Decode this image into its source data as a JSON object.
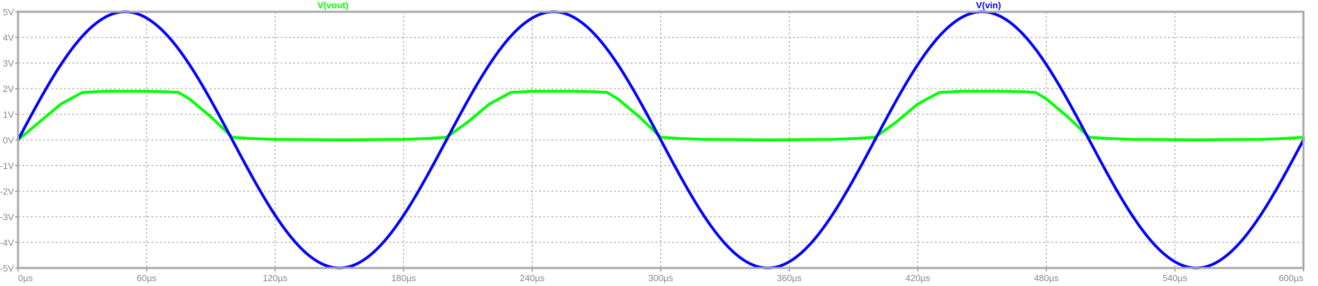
{
  "chart_data": {
    "type": "line",
    "title": "",
    "xlabel": "",
    "ylabel": "",
    "xlim": [
      0,
      600
    ],
    "ylim": [
      -5,
      5
    ],
    "x_ticks": [
      0,
      60,
      120,
      180,
      240,
      300,
      360,
      420,
      480,
      540,
      600
    ],
    "x_tick_labels": [
      "0µs",
      "60µs",
      "120µs",
      "180µs",
      "240µs",
      "300µs",
      "360µs",
      "420µs",
      "480µs",
      "540µs",
      "600µs"
    ],
    "y_ticks": [
      5,
      4,
      3,
      2,
      1,
      0,
      -1,
      -2,
      -3,
      -4,
      -5
    ],
    "y_tick_labels": [
      "5V",
      "4V",
      "3V",
      "2V",
      "1V",
      "0V",
      "-1V",
      "-2V",
      "-3V",
      "-4V",
      "-5V"
    ],
    "grid": true,
    "legend_placement": "top",
    "series": [
      {
        "name": "V(vout)",
        "color": "#00ff00",
        "x": [
          0,
          10,
          20,
          30,
          40,
          50,
          60,
          70,
          75,
          80,
          90,
          100,
          110,
          120,
          150,
          180,
          190,
          200,
          210,
          220,
          230,
          240,
          250,
          260,
          270,
          275,
          280,
          290,
          300,
          310,
          320,
          350,
          380,
          390,
          400,
          410,
          420,
          430,
          440,
          450,
          460,
          470,
          475,
          480,
          490,
          500,
          510,
          520,
          550,
          580,
          590,
          600
        ],
        "values": [
          0,
          0.7,
          1.4,
          1.85,
          1.9,
          1.9,
          1.9,
          1.88,
          1.85,
          1.6,
          0.9,
          0.1,
          0.05,
          0.02,
          0.0,
          0.02,
          0.05,
          0.1,
          0.7,
          1.4,
          1.85,
          1.9,
          1.9,
          1.9,
          1.88,
          1.85,
          1.6,
          0.9,
          0.1,
          0.05,
          0.02,
          0.0,
          0.02,
          0.05,
          0.1,
          0.7,
          1.4,
          1.85,
          1.9,
          1.9,
          1.9,
          1.88,
          1.85,
          1.6,
          0.9,
          0.1,
          0.05,
          0.02,
          0.0,
          0.02,
          0.05,
          0.1
        ]
      },
      {
        "name": "V(vin)",
        "color": "#0000ff",
        "amplitude": 5,
        "period": 200,
        "x": [
          0,
          10,
          20,
          30,
          40,
          50,
          60,
          70,
          80,
          90,
          100,
          110,
          120,
          130,
          140,
          150,
          160,
          170,
          180,
          190,
          200,
          210,
          220,
          230,
          240,
          250,
          260,
          270,
          280,
          290,
          300,
          310,
          320,
          330,
          340,
          350,
          360,
          370,
          380,
          390,
          400,
          410,
          420,
          430,
          440,
          450,
          460,
          470,
          480,
          490,
          500,
          510,
          520,
          530,
          540,
          550,
          560,
          570,
          580,
          590,
          600
        ],
        "values": [
          0,
          1.55,
          2.94,
          4.05,
          4.76,
          5,
          4.76,
          4.05,
          2.94,
          1.55,
          0,
          -1.55,
          -2.94,
          -4.05,
          -4.76,
          -5,
          -4.76,
          -4.05,
          -2.94,
          -1.55,
          0,
          1.55,
          2.94,
          4.05,
          4.76,
          5,
          4.76,
          4.05,
          2.94,
          1.55,
          0,
          -1.55,
          -2.94,
          -4.05,
          -4.76,
          -5,
          -4.76,
          -4.05,
          -2.94,
          -1.55,
          0,
          1.55,
          2.94,
          4.05,
          4.76,
          5,
          4.76,
          4.05,
          2.94,
          1.55,
          0,
          -1.55,
          -2.94,
          -4.05,
          -4.76,
          -5,
          -4.76,
          -4.05,
          -2.94,
          -1.55,
          0
        ]
      }
    ]
  }
}
